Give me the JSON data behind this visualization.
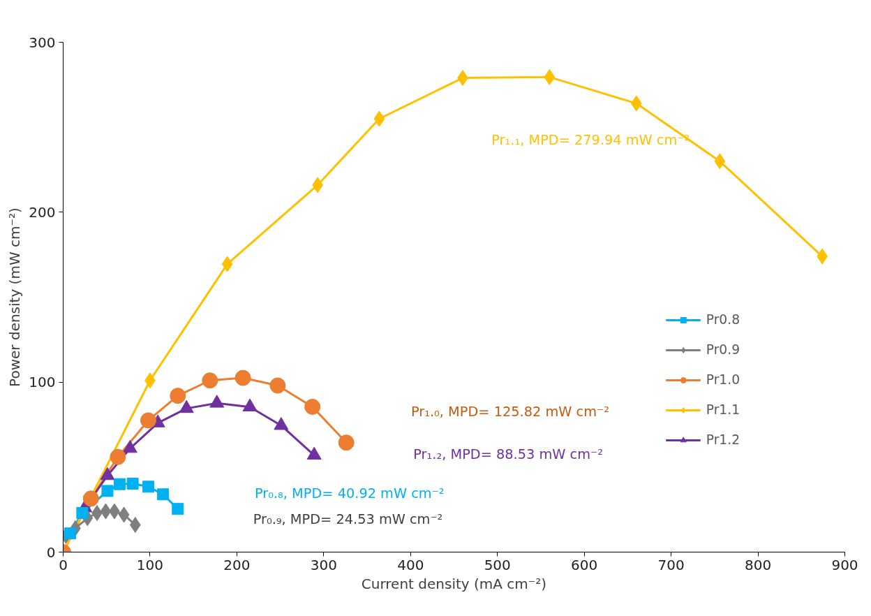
{
  "chart_data": {
    "type": "line",
    "xlabel": "Current density (mA cm⁻²)",
    "ylabel": "Power density (mW cm⁻²)",
    "xlim": [
      0,
      900
    ],
    "ylim": [
      0,
      300
    ],
    "xticks": [
      0,
      100,
      200,
      300,
      400,
      500,
      600,
      700,
      800,
      900
    ],
    "yticks": [
      0,
      100,
      200,
      300
    ],
    "grid": false,
    "legend": "right",
    "line_style": "solid",
    "series": [
      {
        "name": "Pr0.8",
        "color": "#00b0f0",
        "marker": "square",
        "x": [
          8,
          22,
          51,
          65,
          80,
          98,
          115,
          132
        ],
        "values": [
          11,
          23,
          36,
          40,
          40.3,
          38.5,
          34,
          25.4
        ]
      },
      {
        "name": "Pr0.9",
        "color": "#7f7f7f",
        "marker": "diamond",
        "x": [
          3,
          14,
          28,
          39,
          49,
          59,
          70,
          83
        ],
        "values": [
          9.6,
          14,
          20,
          23,
          24,
          24,
          22,
          16
        ]
      },
      {
        "name": "Pr1.0",
        "color": "#ed7d31",
        "marker": "circle",
        "x": [
          0,
          32,
          63,
          98,
          132,
          169,
          207,
          247,
          287,
          326
        ],
        "values": [
          0,
          31.5,
          56,
          77.5,
          92,
          101,
          102.5,
          98,
          85.5,
          64.4
        ]
      },
      {
        "name": "Pr1.1",
        "color": "#ffc000",
        "marker": "diamond",
        "x": [
          0,
          100,
          189,
          293,
          364,
          460,
          560,
          660,
          756,
          874
        ],
        "values": [
          0,
          101,
          169.5,
          216,
          255,
          279,
          279.5,
          264,
          230,
          174
        ]
      },
      {
        "name": "Pr1.2",
        "color": "#7030a0",
        "marker": "triangle",
        "x": [
          25,
          51,
          77,
          109,
          142,
          177,
          215,
          251,
          289
        ],
        "values": [
          26,
          45,
          61,
          76,
          84.5,
          87.6,
          85.4,
          74.5,
          57
        ]
      }
    ],
    "annotations": [
      "Pr₀.₈, MPD= 40.92 mW cm⁻²",
      "Pr₀.₉, MPD= 24.53 mW cm⁻²",
      "Pr₁.₀, MPD= 125.82 mW cm⁻²",
      "Pr₁.₁, MPD= 279.94 mW cm⁻²",
      "Pr₁.₂, MPD= 88.53 mW cm⁻²"
    ]
  }
}
